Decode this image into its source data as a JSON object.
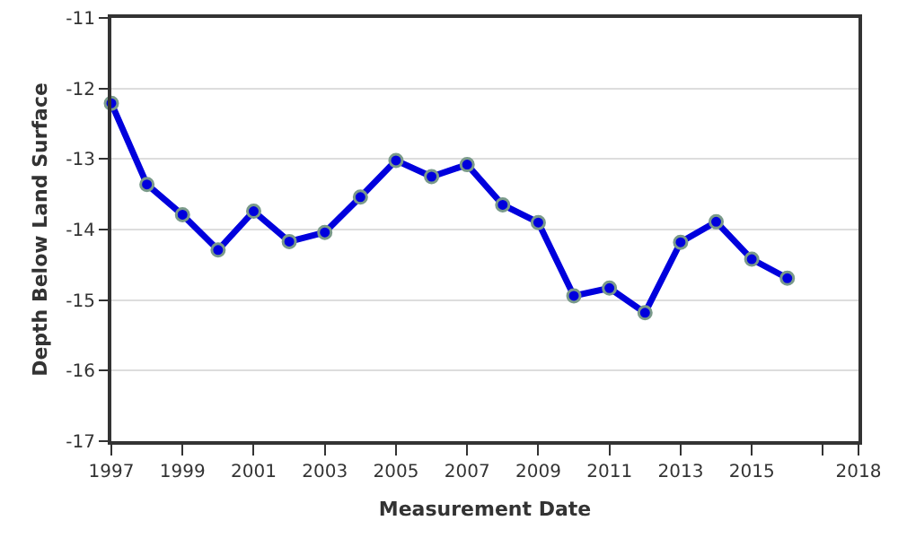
{
  "chart_data": {
    "type": "line",
    "xlabel": "Measurement Date",
    "ylabel": "Depth Below Land Surface",
    "x": [
      1997,
      1998,
      1999,
      2000,
      2001,
      2002,
      2003,
      2004,
      2005,
      2006,
      2007,
      2008,
      2009,
      2010,
      2011,
      2012,
      2013,
      2014,
      2015,
      2016
    ],
    "series": [
      {
        "color": "#0000dd",
        "values": [
          -12.21,
          -13.36,
          -13.79,
          -14.29,
          -13.74,
          -14.17,
          -14.04,
          -13.54,
          -13.02,
          -13.25,
          -13.08,
          -13.65,
          -13.9,
          -14.94,
          -14.83,
          -15.18,
          -14.18,
          -13.89,
          -14.42,
          -14.69
        ]
      }
    ],
    "xlim": [
      1997,
      2018
    ],
    "xticks": [
      1997,
      1999,
      2001,
      2003,
      2005,
      2007,
      2009,
      2011,
      2013,
      2015,
      {
        "value": 2017,
        "label": null
      },
      2018
    ],
    "ylim": [
      -17,
      -11
    ],
    "yticks": [
      -17,
      -16,
      -15,
      -14,
      -13,
      -12,
      -11
    ],
    "grid": "y",
    "marker": "circle",
    "line_style": "solid"
  }
}
